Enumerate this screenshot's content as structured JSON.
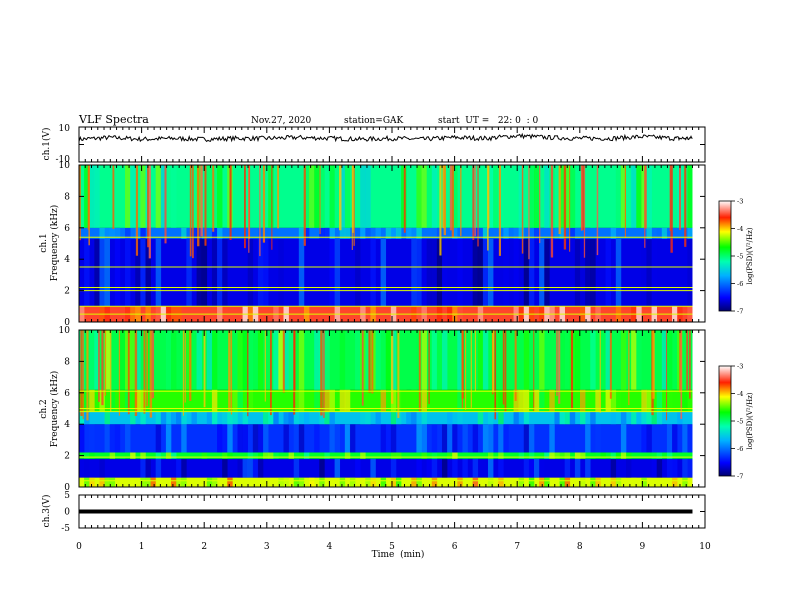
{
  "header": {
    "title": "VLF Spectra",
    "date": "Nov.27, 2020",
    "station": "station=GAK",
    "start": "start  UT =   22: 0  : 0"
  },
  "chart_data": [
    {
      "type": "line",
      "name": "ch1_waveform",
      "ylabel": "ch.1(V)",
      "xlim": [
        0,
        10
      ],
      "ylim": [
        -10,
        10
      ],
      "yticks": [
        10,
        -10
      ],
      "x": [
        0,
        0.5,
        1,
        1.5,
        2,
        2.5,
        3,
        3.5,
        4,
        4.5,
        5,
        5.5,
        6,
        6.5,
        7,
        7.5,
        8,
        8.5,
        9,
        9.5,
        9.8
      ],
      "y": [
        3,
        4,
        3,
        3.5,
        3,
        3.5,
        3.5,
        4,
        3.5,
        3,
        3.5,
        3,
        4,
        3.5,
        5,
        4,
        3.5,
        3.5,
        4.5,
        3.5,
        3.5
      ]
    },
    {
      "type": "heatmap",
      "name": "ch1_spectrogram",
      "ylabel": "ch.1\nFrequency (kHz)",
      "ylabel_line1": "ch.1",
      "ylabel_line2": "Frequency (kHz)",
      "xlim": [
        0,
        10
      ],
      "ylim": [
        0,
        10
      ],
      "yticks": [
        0,
        2,
        4,
        6,
        8,
        10
      ],
      "data_end_min": 9.8,
      "colorbar": {
        "label": "log(PSD)(V²/Hz)",
        "range": [
          -7,
          -3
        ],
        "ticks": [
          "-3",
          "-4",
          "-5",
          "-6",
          "-7"
        ]
      },
      "bands": [
        {
          "from_khz": 0,
          "to_khz": 1,
          "level": -3.5
        },
        {
          "from_khz": 1,
          "to_khz": 5.3,
          "level": -6.6
        },
        {
          "from_khz": 5.3,
          "to_khz": 6,
          "level": -6.0
        },
        {
          "from_khz": 6,
          "to_khz": 10,
          "level": -5.1
        }
      ],
      "lines_khz": [
        0.5,
        1.0,
        2.0,
        2.2,
        3.5,
        5.4
      ]
    },
    {
      "type": "heatmap",
      "name": "ch2_spectrogram",
      "ylabel": "ch.2\nFrequency (kHz)",
      "ylabel_line1": "ch.2",
      "ylabel_line2": "Frequency (kHz)",
      "xlim": [
        0,
        10
      ],
      "ylim": [
        0,
        10
      ],
      "yticks": [
        0,
        2,
        4,
        6,
        8,
        10
      ],
      "data_end_min": 9.8,
      "colorbar": {
        "label": "log(PSD)(V²/Hz)",
        "range": [
          -7,
          -3
        ],
        "ticks": [
          "-3",
          "-4",
          "-5",
          "-6",
          "-7"
        ]
      },
      "bands": [
        {
          "from_khz": 0,
          "to_khz": 0.6,
          "level": -4.2
        },
        {
          "from_khz": 0.6,
          "to_khz": 1.8,
          "level": -6.6
        },
        {
          "from_khz": 1.8,
          "to_khz": 2.2,
          "level": -4.8
        },
        {
          "from_khz": 2.2,
          "to_khz": 4.0,
          "level": -6.3
        },
        {
          "from_khz": 4.0,
          "to_khz": 4.8,
          "level": -5.6
        },
        {
          "from_khz": 4.8,
          "to_khz": 6.2,
          "level": -4.6
        },
        {
          "from_khz": 6.2,
          "to_khz": 10,
          "level": -4.9
        }
      ],
      "lines_khz": [
        0.4,
        1.9,
        4.8,
        5.0,
        6.1
      ]
    },
    {
      "type": "line",
      "name": "ch3_waveform",
      "ylabel": "ch.3(V)",
      "xlim": [
        0,
        10
      ],
      "ylim": [
        -5,
        5
      ],
      "yticks": [
        5,
        0,
        -5
      ],
      "x": [
        0,
        9.8
      ],
      "y": [
        0,
        0
      ]
    }
  ],
  "xaxis": {
    "label": "Time  (min)",
    "ticks": [
      "0",
      "1",
      "2",
      "3",
      "4",
      "5",
      "6",
      "7",
      "8",
      "9",
      "10"
    ]
  }
}
